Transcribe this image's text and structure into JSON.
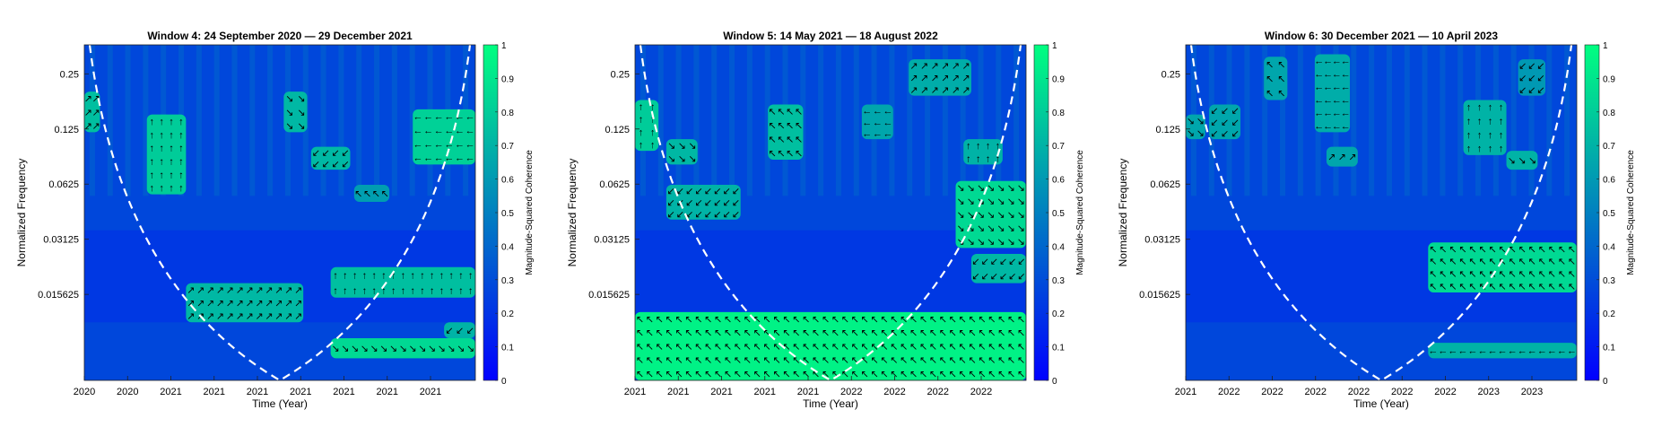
{
  "chart_data": [
    {
      "type": "heatmap",
      "title": "Window 4: 24 September 2020 — 29 December 2021",
      "xlabel": "Time (Year)",
      "ylabel": "Normalized Frequency",
      "colorbar_label": "Magnitude-Squared Coherence",
      "xtick_labels": [
        "2020",
        "2020",
        "2021",
        "2021",
        "2021",
        "2021",
        "2021",
        "2021",
        "2021"
      ],
      "ytick_labels": [
        "0.25",
        "0.125",
        "0.0625",
        "0.03125",
        "0.015625"
      ],
      "colorbar_ticks": [
        "0",
        "0.1",
        "0.2",
        "0.3",
        "0.4",
        "0.5",
        "0.6",
        "0.7",
        "0.8",
        "0.9",
        "1"
      ],
      "clim": [
        0,
        1
      ],
      "cone_of_influence": true,
      "high_coherence_regions": [
        {
          "t": [
            0.0,
            0.04
          ],
          "f": [
            0.12,
            0.2
          ],
          "value": 0.75
        },
        {
          "t": [
            0.16,
            0.26
          ],
          "f": [
            0.055,
            0.15
          ],
          "value": 0.8
        },
        {
          "t": [
            0.51,
            0.57
          ],
          "f": [
            0.12,
            0.2
          ],
          "value": 0.72
        },
        {
          "t": [
            0.58,
            0.68
          ],
          "f": [
            0.075,
            0.1
          ],
          "value": 0.72
        },
        {
          "t": [
            0.69,
            0.78
          ],
          "f": [
            0.05,
            0.062
          ],
          "value": 0.62
        },
        {
          "t": [
            0.84,
            1.0
          ],
          "f": [
            0.08,
            0.16
          ],
          "value": 0.82
        },
        {
          "t": [
            0.26,
            0.56
          ],
          "f": [
            0.011,
            0.018
          ],
          "value": 0.72
        },
        {
          "t": [
            0.63,
            1.0
          ],
          "f": [
            0.015,
            0.022
          ],
          "value": 0.75
        },
        {
          "t": [
            0.63,
            1.0
          ],
          "f": [
            0.007,
            0.009
          ],
          "value": 0.85
        },
        {
          "t": [
            0.92,
            1.0
          ],
          "f": [
            0.009,
            0.011
          ],
          "value": 0.7
        }
      ]
    },
    {
      "type": "heatmap",
      "title": "Window 5: 14 May 2021 — 18 August 2022",
      "xlabel": "Time (Year)",
      "ylabel": "Normalized Frequency",
      "colorbar_label": "Magnitude-Squared Coherence",
      "xtick_labels": [
        "2021",
        "2021",
        "2021",
        "2021",
        "2021",
        "2022",
        "2022",
        "2022",
        "2022"
      ],
      "ytick_labels": [
        "0.25",
        "0.125",
        "0.0625",
        "0.03125",
        "0.015625"
      ],
      "colorbar_ticks": [
        "0",
        "0.1",
        "0.2",
        "0.3",
        "0.4",
        "0.5",
        "0.6",
        "0.7",
        "0.8",
        "0.9",
        "1"
      ],
      "clim": [
        0,
        1
      ],
      "cone_of_influence": true,
      "high_coherence_regions": [
        {
          "t": [
            0.0,
            0.06
          ],
          "f": [
            0.095,
            0.18
          ],
          "value": 0.8
        },
        {
          "t": [
            0.08,
            0.16
          ],
          "f": [
            0.08,
            0.11
          ],
          "value": 0.72
        },
        {
          "t": [
            0.08,
            0.27
          ],
          "f": [
            0.04,
            0.062
          ],
          "value": 0.7
        },
        {
          "t": [
            0.34,
            0.43
          ],
          "f": [
            0.085,
            0.17
          ],
          "value": 0.75
        },
        {
          "t": [
            0.58,
            0.66
          ],
          "f": [
            0.11,
            0.17
          ],
          "value": 0.65
        },
        {
          "t": [
            0.7,
            0.86
          ],
          "f": [
            0.19,
            0.3
          ],
          "value": 0.68
        },
        {
          "t": [
            0.84,
            0.94
          ],
          "f": [
            0.08,
            0.11
          ],
          "value": 0.7
        },
        {
          "t": [
            0.82,
            1.0
          ],
          "f": [
            0.028,
            0.065
          ],
          "value": 0.85
        },
        {
          "t": [
            0.86,
            1.0
          ],
          "f": [
            0.018,
            0.026
          ],
          "value": 0.72
        },
        {
          "t": [
            0.0,
            1.0
          ],
          "f": [
            0.0053,
            0.0125
          ],
          "value": 0.95
        }
      ]
    },
    {
      "type": "heatmap",
      "title": "Window 6: 30 December 2021 — 10 April 2023",
      "xlabel": "Time (Year)",
      "ylabel": "Normalized Frequency",
      "colorbar_label": "Magnitude-Squared Coherence",
      "xtick_labels": [
        "2021",
        "2022",
        "2022",
        "2022",
        "2022",
        "2022",
        "2022",
        "2023",
        "2023"
      ],
      "ytick_labels": [
        "0.25",
        "0.125",
        "0.0625",
        "0.03125",
        "0.015625"
      ],
      "colorbar_ticks": [
        "0",
        "0.1",
        "0.2",
        "0.3",
        "0.4",
        "0.5",
        "0.6",
        "0.7",
        "0.8",
        "0.9",
        "1"
      ],
      "clim": [
        0,
        1
      ],
      "cone_of_influence": true,
      "high_coherence_regions": [
        {
          "t": [
            0.0,
            0.05
          ],
          "f": [
            0.11,
            0.15
          ],
          "value": 0.65
        },
        {
          "t": [
            0.06,
            0.14
          ],
          "f": [
            0.11,
            0.17
          ],
          "value": 0.65
        },
        {
          "t": [
            0.2,
            0.26
          ],
          "f": [
            0.18,
            0.31
          ],
          "value": 0.65
        },
        {
          "t": [
            0.33,
            0.42
          ],
          "f": [
            0.12,
            0.32
          ],
          "value": 0.68
        },
        {
          "t": [
            0.36,
            0.44
          ],
          "f": [
            0.078,
            0.1
          ],
          "value": 0.65
        },
        {
          "t": [
            0.71,
            0.82
          ],
          "f": [
            0.09,
            0.18
          ],
          "value": 0.7
        },
        {
          "t": [
            0.82,
            0.9
          ],
          "f": [
            0.075,
            0.095
          ],
          "value": 0.7
        },
        {
          "t": [
            0.85,
            0.92
          ],
          "f": [
            0.19,
            0.3
          ],
          "value": 0.6
        },
        {
          "t": [
            0.62,
            1.0
          ],
          "f": [
            0.016,
            0.03
          ],
          "value": 0.85
        },
        {
          "t": [
            0.62,
            1.0
          ],
          "f": [
            0.007,
            0.0085
          ],
          "value": 0.7
        }
      ]
    }
  ]
}
